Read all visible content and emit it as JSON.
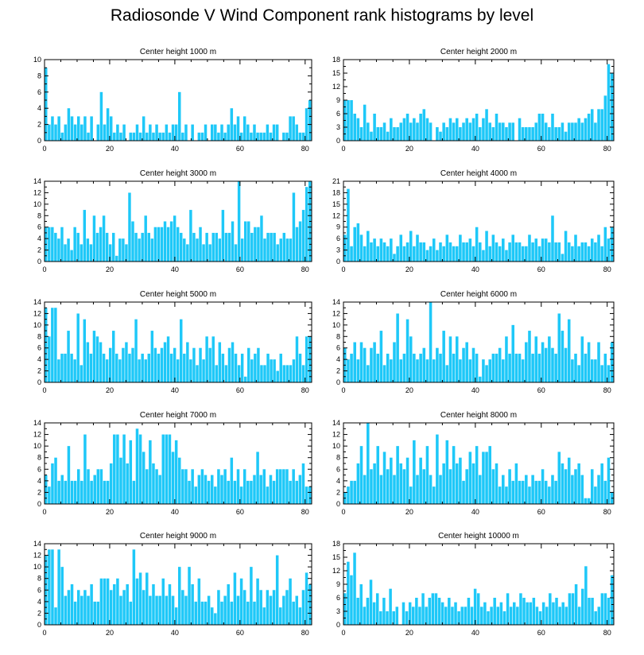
{
  "title": "Radiosonde V Wind Component rank histograms by level",
  "colors": {
    "bar": "#1ec8f8",
    "axis": "#000000"
  },
  "chart_data": [
    {
      "type": "bar",
      "title": "Center height 1000 m",
      "xlim": [
        0,
        82
      ],
      "ylim": [
        0,
        10
      ],
      "xticks": [
        0,
        20,
        40,
        60,
        80
      ],
      "yticks": [
        0,
        2,
        4,
        6,
        8,
        10
      ],
      "values": [
        9,
        2,
        3,
        2,
        3,
        1,
        2,
        4,
        3,
        2,
        3,
        2,
        3,
        1,
        3,
        0,
        2,
        6,
        2,
        4,
        3,
        1,
        2,
        1,
        2,
        0,
        1,
        1,
        2,
        1,
        3,
        1,
        2,
        1,
        2,
        1,
        1,
        2,
        1,
        2,
        2,
        6,
        1,
        2,
        0,
        2,
        0,
        1,
        1,
        2,
        0,
        2,
        2,
        1,
        2,
        1,
        2,
        4,
        2,
        3,
        1,
        3,
        2,
        1,
        2,
        1,
        1,
        1,
        2,
        1,
        2,
        2,
        0,
        1,
        1,
        3,
        3,
        2,
        1,
        1,
        4,
        5
      ]
    },
    {
      "type": "bar",
      "title": "Center height 2000 m",
      "xlim": [
        0,
        82
      ],
      "ylim": [
        0,
        18
      ],
      "xticks": [
        0,
        20,
        40,
        60,
        80
      ],
      "yticks": [
        0,
        3,
        6,
        9,
        12,
        15,
        18
      ],
      "values": [
        9,
        9,
        9,
        6,
        5,
        3,
        8,
        4,
        2,
        6,
        3,
        3,
        4,
        2,
        5,
        3,
        3,
        4,
        5,
        6,
        4,
        5,
        4,
        6,
        7,
        5,
        4,
        0,
        3,
        2,
        4,
        3,
        5,
        4,
        5,
        3,
        4,
        5,
        4,
        5,
        6,
        3,
        5,
        7,
        4,
        3,
        6,
        4,
        4,
        3,
        4,
        4,
        0,
        5,
        3,
        3,
        3,
        3,
        4,
        6,
        6,
        4,
        3,
        6,
        3,
        3,
        4,
        2,
        4,
        4,
        4,
        5,
        4,
        5,
        6,
        7,
        4,
        7,
        7,
        10,
        17,
        15
      ]
    },
    {
      "type": "bar",
      "title": "Center height 3000 m",
      "xlim": [
        0,
        82
      ],
      "ylim": [
        0,
        14
      ],
      "xticks": [
        0,
        20,
        40,
        60,
        80
      ],
      "yticks": [
        0,
        2,
        4,
        6,
        8,
        10,
        12,
        14
      ],
      "values": [
        6,
        6,
        6,
        5,
        4,
        6,
        3,
        4,
        2,
        6,
        5,
        3,
        9,
        4,
        3,
        8,
        5,
        6,
        8,
        5,
        3,
        5,
        1,
        4,
        4,
        3,
        12,
        7,
        5,
        4,
        5,
        8,
        5,
        4,
        6,
        6,
        6,
        7,
        6,
        7,
        8,
        6,
        5,
        4,
        3,
        9,
        5,
        4,
        6,
        3,
        5,
        3,
        5,
        5,
        4,
        9,
        5,
        5,
        7,
        3,
        14,
        4,
        7,
        7,
        5,
        6,
        6,
        8,
        4,
        5,
        5,
        5,
        3,
        4,
        5,
        4,
        4,
        12,
        6,
        7,
        9,
        13,
        14
      ]
    },
    {
      "type": "bar",
      "title": "Center height 4000 m",
      "xlim": [
        0,
        82
      ],
      "ylim": [
        0,
        21
      ],
      "xticks": [
        0,
        20,
        40,
        60,
        80
      ],
      "yticks": [
        0,
        3,
        6,
        9,
        12,
        15,
        18,
        21
      ],
      "values": [
        7,
        19,
        4,
        9,
        10,
        7,
        4,
        8,
        5,
        6,
        4,
        6,
        5,
        4,
        6,
        2,
        4,
        7,
        4,
        5,
        8,
        4,
        7,
        5,
        5,
        3,
        4,
        6,
        3,
        5,
        4,
        7,
        5,
        4,
        4,
        7,
        5,
        5,
        6,
        4,
        9,
        5,
        3,
        8,
        4,
        7,
        5,
        4,
        6,
        3,
        5,
        7,
        5,
        5,
        4,
        4,
        7,
        5,
        6,
        4,
        6,
        6,
        5,
        12,
        5,
        5,
        2,
        8,
        5,
        4,
        7,
        4,
        5,
        5,
        4,
        6,
        5,
        7,
        4,
        9,
        6,
        9
      ]
    },
    {
      "type": "bar",
      "title": "Center height 5000 m",
      "xlim": [
        0,
        82
      ],
      "ylim": [
        0,
        14
      ],
      "xticks": [
        0,
        20,
        40,
        60,
        80
      ],
      "yticks": [
        0,
        2,
        4,
        6,
        8,
        10,
        12,
        14
      ],
      "values": [
        13,
        8,
        13,
        13,
        4,
        5,
        5,
        9,
        5,
        4,
        12,
        3,
        11,
        7,
        5,
        9,
        8,
        7,
        5,
        4,
        6,
        9,
        5,
        4,
        6,
        7,
        5,
        6,
        11,
        4,
        5,
        4,
        5,
        9,
        6,
        5,
        6,
        7,
        8,
        5,
        6,
        4,
        11,
        5,
        7,
        4,
        6,
        3,
        6,
        4,
        8,
        6,
        8,
        3,
        7,
        5,
        3,
        6,
        7,
        5,
        3,
        5,
        1,
        6,
        4,
        5,
        6,
        3,
        3,
        5,
        4,
        4,
        2,
        5,
        3,
        3,
        3,
        4,
        8,
        5,
        3,
        8,
        8
      ]
    },
    {
      "type": "bar",
      "title": "Center height 6000 m",
      "xlim": [
        0,
        82
      ],
      "ylim": [
        0,
        14
      ],
      "xticks": [
        0,
        20,
        40,
        60,
        80
      ],
      "yticks": [
        0,
        2,
        4,
        6,
        8,
        10,
        12,
        14
      ],
      "values": [
        6,
        4,
        5,
        7,
        4,
        7,
        6,
        3,
        6,
        7,
        5,
        9,
        3,
        5,
        4,
        7,
        12,
        4,
        5,
        11,
        8,
        5,
        4,
        5,
        6,
        4,
        14,
        4,
        6,
        5,
        9,
        3,
        8,
        5,
        8,
        4,
        6,
        7,
        4,
        6,
        5,
        1,
        4,
        3,
        4,
        5,
        5,
        6,
        4,
        8,
        5,
        10,
        5,
        5,
        4,
        7,
        9,
        5,
        8,
        5,
        7,
        6,
        8,
        6,
        5,
        12,
        9,
        6,
        11,
        4,
        5,
        3,
        8,
        5,
        7,
        4,
        4,
        7,
        3,
        5,
        3,
        7
      ]
    },
    {
      "type": "bar",
      "title": "Center height 7000 m",
      "xlim": [
        0,
        82
      ],
      "ylim": [
        0,
        14
      ],
      "xticks": [
        0,
        20,
        40,
        60,
        80
      ],
      "yticks": [
        0,
        2,
        4,
        6,
        8,
        10,
        12,
        14
      ],
      "values": [
        5,
        3,
        7,
        8,
        4,
        5,
        4,
        10,
        4,
        4,
        6,
        4,
        12,
        6,
        4,
        5,
        6,
        6,
        4,
        4,
        7,
        12,
        12,
        8,
        12,
        7,
        11,
        4,
        13,
        12,
        9,
        6,
        11,
        7,
        6,
        5,
        12,
        12,
        12,
        9,
        11,
        8,
        6,
        6,
        4,
        6,
        3,
        5,
        6,
        5,
        4,
        5,
        3,
        6,
        5,
        6,
        4,
        8,
        4,
        6,
        3,
        6,
        4,
        4,
        5,
        9,
        5,
        6,
        3,
        5,
        4,
        6,
        6,
        6,
        6,
        4,
        6,
        4,
        5,
        7,
        3,
        3
      ]
    },
    {
      "type": "bar",
      "title": "Center height 8000 m",
      "xlim": [
        0,
        82
      ],
      "ylim": [
        0,
        14
      ],
      "xticks": [
        0,
        20,
        40,
        60,
        80
      ],
      "yticks": [
        0,
        2,
        4,
        6,
        8,
        10,
        12,
        14
      ],
      "values": [
        2,
        3,
        4,
        4,
        7,
        10,
        5,
        14,
        6,
        7,
        10,
        5,
        9,
        6,
        8,
        5,
        10,
        7,
        6,
        8,
        3,
        11,
        5,
        8,
        6,
        10,
        5,
        3,
        12,
        5,
        7,
        11,
        6,
        10,
        7,
        8,
        4,
        6,
        9,
        7,
        10,
        5,
        9,
        9,
        10,
        6,
        7,
        3,
        5,
        3,
        6,
        4,
        7,
        4,
        4,
        5,
        3,
        5,
        4,
        4,
        6,
        4,
        3,
        5,
        4,
        9,
        7,
        6,
        8,
        5,
        6,
        7,
        5,
        1,
        1,
        6,
        3,
        5,
        7,
        4,
        8,
        2
      ]
    },
    {
      "type": "bar",
      "title": "Center height 9000 m",
      "xlim": [
        0,
        82
      ],
      "ylim": [
        0,
        14
      ],
      "xticks": [
        0,
        20,
        40,
        60,
        80
      ],
      "yticks": [
        0,
        2,
        4,
        6,
        8,
        10,
        12,
        14
      ],
      "values": [
        12,
        13,
        13,
        3,
        13,
        10,
        5,
        6,
        7,
        4,
        6,
        5,
        6,
        5,
        7,
        4,
        4,
        8,
        8,
        8,
        6,
        7,
        8,
        5,
        6,
        7,
        4,
        13,
        8,
        9,
        6,
        9,
        5,
        7,
        5,
        5,
        8,
        5,
        7,
        5,
        3,
        10,
        6,
        5,
        10,
        7,
        4,
        8,
        4,
        4,
        5,
        3,
        2,
        6,
        4,
        5,
        7,
        4,
        9,
        5,
        8,
        6,
        4,
        10,
        4,
        8,
        6,
        3,
        6,
        5,
        6,
        12,
        3,
        5,
        6,
        8,
        4,
        5,
        3,
        6,
        9,
        7
      ]
    },
    {
      "type": "bar",
      "title": "Center height 10000 m",
      "xlim": [
        0,
        82
      ],
      "ylim": [
        0,
        18
      ],
      "xticks": [
        0,
        20,
        40,
        60,
        80
      ],
      "yticks": [
        0,
        3,
        6,
        9,
        12,
        15,
        18
      ],
      "values": [
        7,
        14,
        11,
        16,
        6,
        9,
        4,
        6,
        10,
        5,
        7,
        3,
        6,
        3,
        8,
        3,
        4,
        0,
        5,
        3,
        5,
        4,
        6,
        4,
        7,
        4,
        6,
        7,
        7,
        6,
        5,
        4,
        6,
        4,
        5,
        3,
        4,
        4,
        6,
        4,
        8,
        7,
        4,
        5,
        3,
        4,
        6,
        4,
        5,
        3,
        7,
        4,
        5,
        4,
        7,
        6,
        5,
        5,
        6,
        4,
        3,
        5,
        4,
        7,
        5,
        6,
        4,
        5,
        4,
        7,
        7,
        9,
        4,
        8,
        13,
        6,
        6,
        3,
        4,
        7,
        7,
        6,
        11
      ]
    }
  ]
}
